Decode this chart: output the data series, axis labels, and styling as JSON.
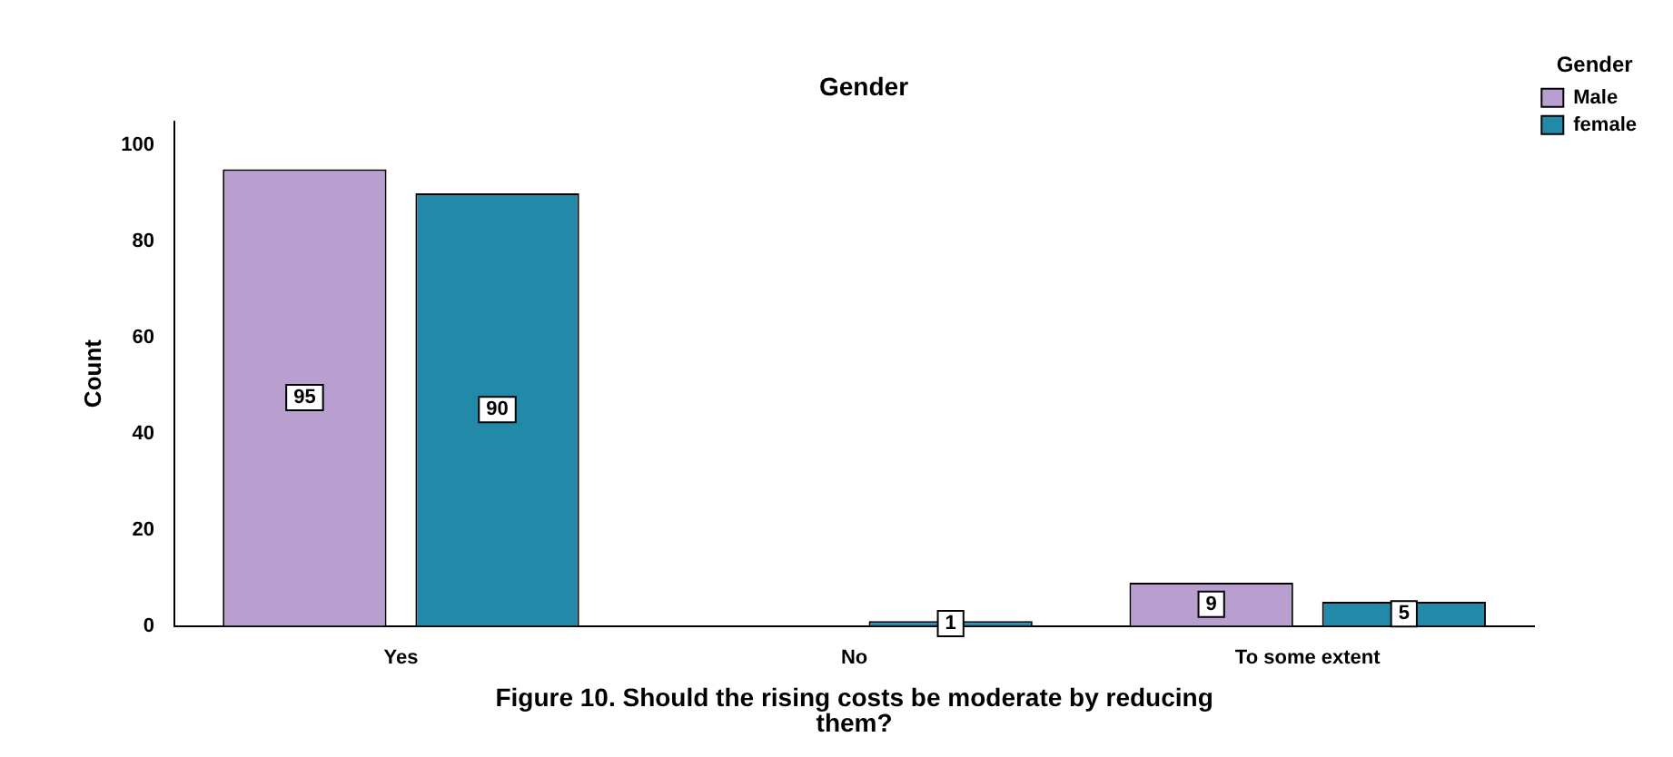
{
  "chart_data": {
    "type": "bar",
    "title": "Gender",
    "ylabel": "Count",
    "legend_title": "Gender",
    "legend": "top right",
    "categories": [
      "Yes",
      "No",
      "To some extent"
    ],
    "series": [
      {
        "name": "Male",
        "color": "#b99fcf",
        "values": [
          95,
          null,
          9
        ]
      },
      {
        "name": "female",
        "color": "#2389a8",
        "values": [
          90,
          1,
          5
        ]
      }
    ],
    "ylim": [
      0,
      105
    ],
    "yticks": [
      0,
      20,
      40,
      60,
      80,
      100
    ],
    "grid": false,
    "data_labels": true,
    "annotations": [
      "Figure 10. Should the rising costs be moderate by reducing them?"
    ]
  }
}
